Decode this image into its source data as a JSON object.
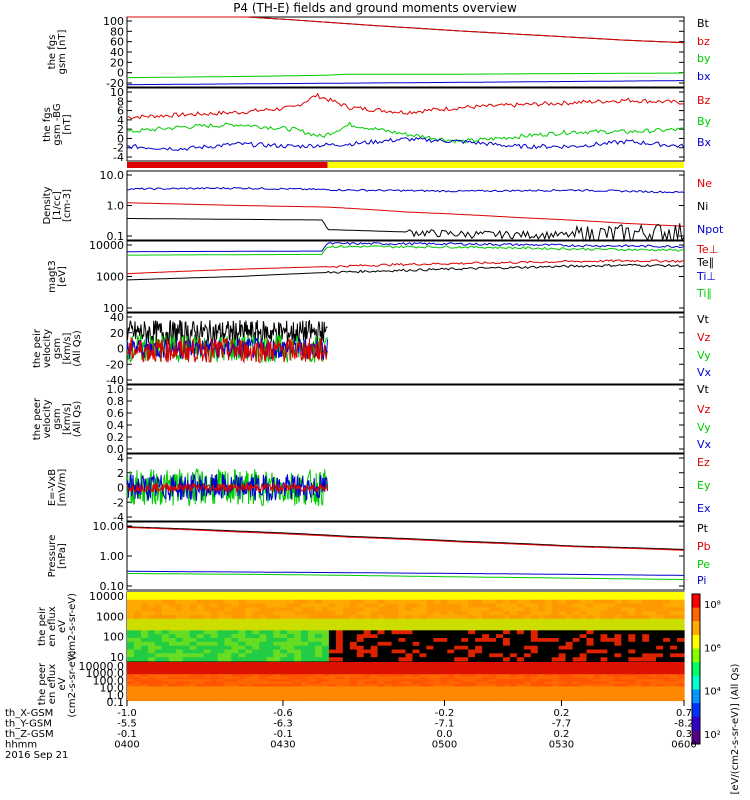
{
  "title": "P4 (TH-E) fields and ground moments overview",
  "colors": {
    "black": "#000000",
    "red": "#dd0000",
    "green": "#00cc00",
    "blue": "#0000cc",
    "yellow": "#ffff00",
    "axis": "#000000"
  },
  "chart_data": [
    {
      "id": "fgs",
      "type": "line",
      "ylabel": "the fgs gsm [nT]",
      "ylim": [
        -20,
        100
      ],
      "yticks": [
        "100",
        "80",
        "60",
        "40",
        "20",
        "0",
        "-20"
      ],
      "legend": [
        "Bt",
        "bz",
        "by",
        "bx"
      ],
      "series": [
        {
          "name": "Bt",
          "color": "black",
          "x": [
            0,
            0.15,
            0.3,
            0.45,
            0.6,
            0.75,
            0.9,
            1
          ],
          "y": [
            108,
            104,
            95,
            85,
            76,
            68,
            60,
            56
          ]
        },
        {
          "name": "bz",
          "color": "red",
          "x": [
            0,
            0.15,
            0.3,
            0.45,
            0.6,
            0.75,
            0.9,
            1
          ],
          "y": [
            108,
            104,
            95,
            85,
            76,
            68,
            60,
            56
          ]
        },
        {
          "name": "by",
          "color": "green",
          "x": [
            0,
            0.2,
            0.35,
            0.4,
            0.6,
            0.8,
            1
          ],
          "y": [
            -4,
            -2,
            0,
            2,
            2,
            3,
            4
          ]
        },
        {
          "name": "bx",
          "color": "blue",
          "x": [
            0,
            0.3,
            0.6,
            1
          ],
          "y": [
            -16,
            -14,
            -12,
            -9
          ]
        }
      ]
    },
    {
      "id": "fgs_detrended",
      "type": "line",
      "ylabel": "the fgs gsm -BG [nT]",
      "ylim": [
        -5,
        10
      ],
      "yticks": [
        "10",
        "8",
        "6",
        "4",
        "2",
        "0",
        "-2",
        "-4"
      ],
      "legend": [
        "Bz",
        "By",
        "Bx"
      ],
      "series": [
        {
          "name": "Bz",
          "color": "red",
          "x": [
            0,
            0.1,
            0.2,
            0.3,
            0.34,
            0.4,
            0.5,
            0.6,
            0.7,
            0.8,
            0.9,
            1
          ],
          "y": [
            4,
            4.5,
            5,
            6,
            8.5,
            6,
            5,
            6,
            6.5,
            7,
            7.5,
            7
          ]
        },
        {
          "name": "By",
          "color": "green",
          "x": [
            0,
            0.1,
            0.2,
            0.3,
            0.35,
            0.4,
            0.5,
            0.6,
            0.7,
            0.8,
            0.9,
            1
          ],
          "y": [
            1,
            2,
            2.5,
            1.5,
            0,
            2.5,
            0.5,
            -1,
            0,
            1,
            1,
            1.5
          ]
        },
        {
          "name": "Bx",
          "color": "blue",
          "x": [
            0,
            0.1,
            0.2,
            0.3,
            0.4,
            0.5,
            0.6,
            0.7,
            0.8,
            0.9,
            1
          ],
          "y": [
            -2,
            -2.5,
            -1.5,
            -2,
            -1.5,
            -0.5,
            -1,
            -2,
            -2,
            -1,
            -2
          ]
        }
      ]
    },
    {
      "id": "density",
      "type": "line",
      "ylabel": "Density [1/cc] [cm-3]",
      "scale": "log",
      "ylim": [
        0.1,
        10
      ],
      "yticks": [
        "10.0",
        "1.0",
        "0.1"
      ],
      "legend": [
        "Ne",
        "Ni",
        "Npot"
      ],
      "series": [
        {
          "name": "Ne",
          "color": "red",
          "x": [
            0,
            0.2,
            0.36,
            0.5,
            0.7,
            0.9,
            1
          ],
          "y": [
            1.2,
            1.0,
            0.9,
            0.65,
            0.45,
            0.3,
            0.25
          ]
        },
        {
          "name": "Ni",
          "color": "black",
          "x": [
            0,
            0.35,
            0.36,
            0.6,
            0.8,
            1
          ],
          "y": [
            0.42,
            0.38,
            0.2,
            0.15,
            0.14,
            0.18
          ]
        },
        {
          "name": "Npot",
          "color": "blue",
          "x": [
            0,
            0.2,
            0.4,
            0.6,
            0.8,
            1
          ],
          "y": [
            3.0,
            3.2,
            2.8,
            2.6,
            2.8,
            2.4
          ]
        }
      ]
    },
    {
      "id": "temperature",
      "type": "line",
      "ylabel": "magt3 [eV]",
      "scale": "log",
      "ylim": [
        100,
        10000
      ],
      "yticks": [
        "10000",
        "1000",
        "100"
      ],
      "legend": [
        "Te⊥",
        "Te∥",
        "Ti⊥",
        "Ti∥"
      ],
      "series": [
        {
          "name": "Te⊥",
          "color": "red",
          "x": [
            0,
            0.2,
            0.36,
            0.5,
            0.7,
            0.9,
            1
          ],
          "y": [
            1200,
            1600,
            1900,
            2200,
            2500,
            2800,
            2700
          ]
        },
        {
          "name": "Te∥",
          "color": "black",
          "x": [
            0,
            0.2,
            0.36,
            0.5,
            0.7,
            0.9,
            1
          ],
          "y": [
            800,
            1000,
            1300,
            1500,
            1800,
            2100,
            2000
          ]
        },
        {
          "name": "Ti⊥",
          "color": "blue",
          "x": [
            0,
            0.35,
            0.36,
            0.6,
            0.8,
            1
          ],
          "y": [
            5000,
            5200,
            8500,
            8300,
            7500,
            7000
          ]
        },
        {
          "name": "Ti∥",
          "color": "green",
          "x": [
            0,
            0.35,
            0.36,
            0.6,
            0.8,
            1
          ],
          "y": [
            4000,
            4200,
            7000,
            6800,
            6000,
            5500
          ]
        }
      ]
    },
    {
      "id": "peir_velocity",
      "type": "line",
      "ylabel": "the peir velocity gsm [km/s] (All Qs)",
      "ylim": [
        -40,
        40
      ],
      "yticks": [
        "40",
        "20",
        "0",
        "-20",
        "-40"
      ],
      "legend": [
        "Vt",
        "Vz",
        "Vy",
        "Vx"
      ],
      "data_end_x": 0.36
    },
    {
      "id": "peer_velocity",
      "type": "line",
      "ylabel": "the peer velocity gsm [km/s] (All Qs)",
      "ylim": [
        0,
        1
      ],
      "yticks": [
        "1.0",
        "0.8",
        "0.6",
        "0.4",
        "0.2",
        "0.0"
      ],
      "legend": [
        "Vt",
        "Vz",
        "Vy",
        "Vx"
      ]
    },
    {
      "id": "efield",
      "type": "line",
      "ylabel": "E=-VxB [mV/m]",
      "ylim": [
        -4,
        4
      ],
      "yticks": [
        "4",
        "2",
        "0",
        "-2",
        "-4"
      ],
      "legend": [
        "Ez",
        "Ey",
        "Ex"
      ],
      "data_end_x": 0.36
    },
    {
      "id": "pressure",
      "type": "line",
      "ylabel": "Pressure [nPa]",
      "scale": "log",
      "ylim": [
        0.05,
        15
      ],
      "yticks": [
        "10.00",
        "1.00",
        "0.10"
      ],
      "legend": [
        "Pt",
        "Pb",
        "Pe",
        "Pi"
      ],
      "series": [
        {
          "name": "Pt",
          "color": "black",
          "x": [
            0,
            0.2,
            0.4,
            0.6,
            0.8,
            1
          ],
          "y": [
            10,
            7,
            4.5,
            3,
            2,
            1.5
          ]
        },
        {
          "name": "Pb",
          "color": "red",
          "x": [
            0,
            0.2,
            0.4,
            0.6,
            0.8,
            1
          ],
          "y": [
            9.5,
            6.5,
            4.2,
            2.8,
            1.9,
            1.4
          ]
        },
        {
          "name": "Pe",
          "color": "green",
          "x": [
            0,
            0.3,
            0.6,
            1
          ],
          "y": [
            0.2,
            0.18,
            0.15,
            0.12
          ]
        },
        {
          "name": "Pi",
          "color": "blue",
          "x": [
            0,
            0.3,
            0.6,
            1
          ],
          "y": [
            0.24,
            0.22,
            0.2,
            0.17
          ]
        }
      ]
    },
    {
      "id": "peir_spectrogram",
      "type": "heatmap",
      "ylabel": "the peir en eflux eV (cm2-s-sr-eV)",
      "scale": "log",
      "ylim": [
        7,
        14000
      ],
      "yticks": [
        "10000",
        "1000",
        "100",
        "10"
      ],
      "transition_x": 0.36
    },
    {
      "id": "peer_spectrogram",
      "type": "heatmap",
      "ylabel": "the peer en eflux eV (cm2-s-sr-eV)",
      "scale": "log",
      "ylim": [
        0.07,
        30000
      ],
      "yticks": [
        "10000.0",
        "1000.0",
        "100.0",
        "10.0",
        "1.0",
        "0.1"
      ]
    }
  ],
  "colorbar": {
    "ticks": [
      "10⁸",
      "10⁶",
      "10⁴",
      "10²"
    ],
    "label": "[eV/(cm2-s-sr-eV)] (All Qs)"
  },
  "axis": {
    "row_labels": [
      "th_X-GSM",
      "th_Y-GSM",
      "th_Z-GSM",
      "hhmm"
    ],
    "date": "2016 Sep 21",
    "ticks": [
      {
        "x": "-1.0",
        "y": "-5.5",
        "z": "-0.1",
        "t": "0400"
      },
      {
        "x": "-0.6",
        "y": "-6.3",
        "z": "-0.1",
        "t": "0430"
      },
      {
        "x": "-0.2",
        "y": "-7.1",
        "z": "0.0",
        "t": "0500"
      },
      {
        "x": "0.2",
        "y": "-7.7",
        "z": "0.2",
        "t": "0530"
      },
      {
        "x": "0.7",
        "y": "-8.2",
        "z": "0.3",
        "t": "0600"
      }
    ]
  }
}
